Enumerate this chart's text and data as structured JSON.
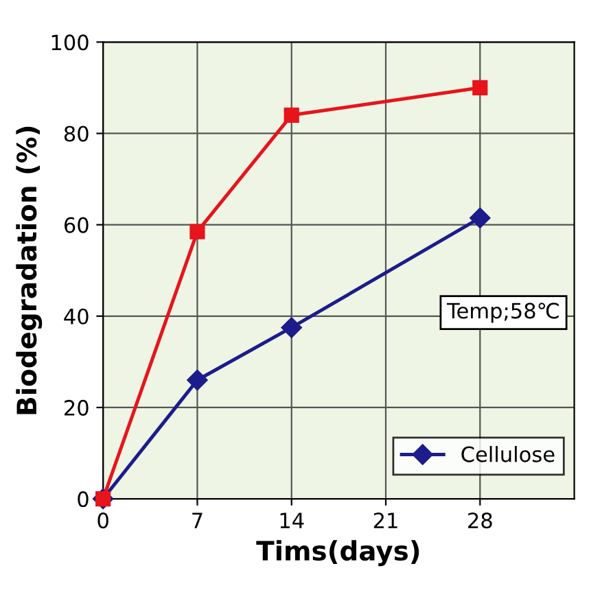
{
  "chart_data": {
    "type": "line",
    "xlabel": "Tims(days)",
    "ylabel": "Biodegradation (%)",
    "xlim": [
      0,
      35
    ],
    "xticks": [
      0,
      7,
      14,
      21,
      28
    ],
    "ylim": [
      0,
      100
    ],
    "yticks": [
      0,
      20,
      40,
      60,
      80,
      100
    ],
    "grid": true,
    "legend": "bottom right",
    "line_style": "solid",
    "annotations": [
      "Temp;58℃"
    ],
    "series": [
      {
        "name": "Cellulose",
        "color": "#1c1c8c",
        "marker": "diamond",
        "x": [
          0,
          7,
          14,
          28
        ],
        "values": [
          0,
          26,
          37.5,
          61.5
        ]
      },
      {
        "color": "#e8141c",
        "marker": "square",
        "x": [
          0,
          7,
          14,
          28
        ],
        "values": [
          0,
          58.5,
          84,
          90
        ]
      }
    ]
  }
}
